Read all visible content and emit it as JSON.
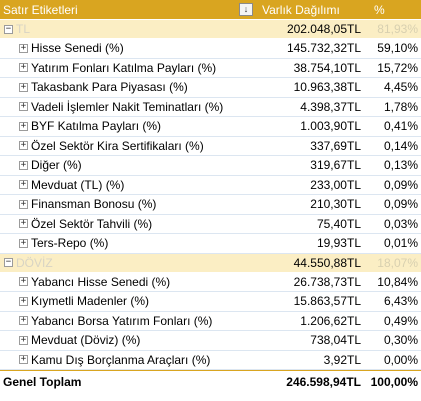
{
  "header": {
    "row_label": "Satır Etiketleri",
    "value_label": "Varlık Dağılımı",
    "pct_label": "%"
  },
  "groups": [
    {
      "name": "TL",
      "value": "202.048,05TL",
      "pct": "81,93%",
      "items": [
        {
          "label": "Hisse Senedi (%)",
          "value": "145.732,32TL",
          "pct": "59,10%"
        },
        {
          "label": "Yatırım Fonları Katılma Payları (%)",
          "value": "38.754,10TL",
          "pct": "15,72%"
        },
        {
          "label": "Takasbank Para Piyasası (%)",
          "value": "10.963,38TL",
          "pct": "4,45%"
        },
        {
          "label": "Vadeli İşlemler Nakit Teminatları (%)",
          "value": "4.398,37TL",
          "pct": "1,78%"
        },
        {
          "label": "BYF Katılma Payları (%)",
          "value": "1.003,90TL",
          "pct": "0,41%"
        },
        {
          "label": "Özel Sektör Kira Sertifikaları (%)",
          "value": "337,69TL",
          "pct": "0,14%"
        },
        {
          "label": "Diğer (%)",
          "value": "319,67TL",
          "pct": "0,13%"
        },
        {
          "label": "Mevduat (TL) (%)",
          "value": "233,00TL",
          "pct": "0,09%"
        },
        {
          "label": "Finansman Bonosu (%)",
          "value": "210,30TL",
          "pct": "0,09%"
        },
        {
          "label": "Özel Sektör Tahvili (%)",
          "value": "75,40TL",
          "pct": "0,03%"
        },
        {
          "label": "Ters-Repo (%)",
          "value": "19,93TL",
          "pct": "0,01%"
        }
      ]
    },
    {
      "name": "DÖVİZ",
      "value": "44.550,88TL",
      "pct": "18,07%",
      "items": [
        {
          "label": "Yabancı Hisse Senedi (%)",
          "value": "26.738,73TL",
          "pct": "10,84%"
        },
        {
          "label": "Kıymetli Madenler (%)",
          "value": "15.863,57TL",
          "pct": "6,43%"
        },
        {
          "label": "Yabancı Borsa Yatırım Fonları (%)",
          "value": "1.206,62TL",
          "pct": "0,49%"
        },
        {
          "label": "Mevduat (Döviz) (%)",
          "value": "738,04TL",
          "pct": "0,30%"
        },
        {
          "label": "Kamu Dış Borçlanma Araçları (%)",
          "value": "3,92TL",
          "pct": "0,00%"
        }
      ]
    }
  ],
  "total": {
    "label": "Genel Toplam",
    "value": "246.598,94TL",
    "pct": "100,00%"
  },
  "glyphs": {
    "collapse": "−",
    "expand": "+",
    "filter": "↓"
  },
  "colors": {
    "header_bg": "#d9a520",
    "group_bg": "#fbeec4",
    "row_border": "#dce6f1"
  }
}
